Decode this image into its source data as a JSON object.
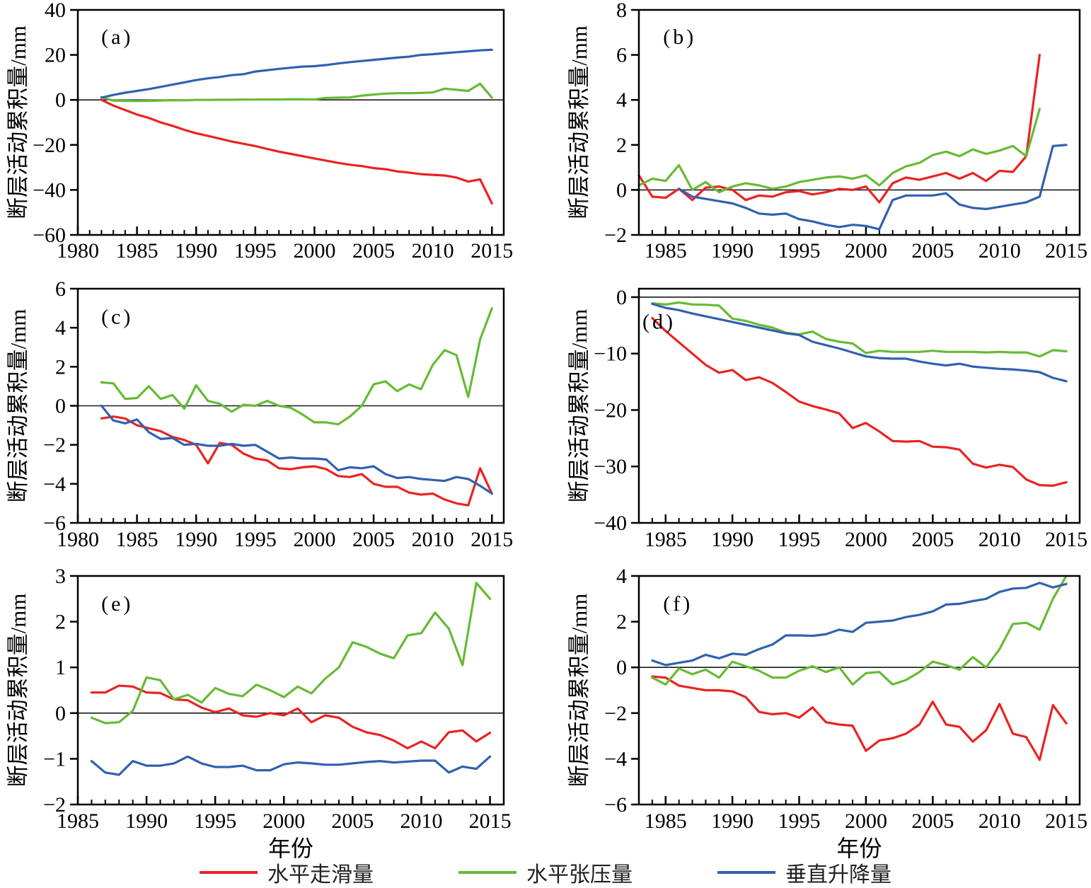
{
  "colors": {
    "red": "#e92322",
    "green": "#67ba35",
    "blue": "#3161ae",
    "axis": "#000000",
    "zero_line": "#1a1a1a"
  },
  "legend": {
    "items": [
      {
        "label": "水平走滑量",
        "color_key": "red"
      },
      {
        "label": "水平张压量",
        "color_key": "green"
      },
      {
        "label": "垂直升降量",
        "color_key": "blue"
      }
    ]
  },
  "chart_data": [
    {
      "type": "line",
      "panel": "(a)",
      "ylabel": "断层活动累积量/mm",
      "xlabel": "",
      "xlim": [
        1980,
        2016
      ],
      "ylim": [
        -60,
        40
      ],
      "yticks": [
        40,
        20,
        0,
        -20,
        -40,
        -60
      ],
      "xticks": [
        1980,
        1985,
        1990,
        1995,
        2000,
        2005,
        2010,
        2015
      ],
      "minor_tick_step": 1,
      "series": [
        {
          "name": "水平走滑量",
          "color_key": "red",
          "start_year": 1982,
          "values": [
            0,
            -2.5,
            -4.5,
            -6.5,
            -8.0,
            -10.0,
            -11.5,
            -13.3,
            -14.8,
            -16.0,
            -17.2,
            -18.5,
            -19.5,
            -20.5,
            -21.8,
            -23.0,
            -24.0,
            -25.0,
            -26.0,
            -27.0,
            -28.0,
            -28.8,
            -29.4,
            -30.3,
            -30.8,
            -31.8,
            -32.3,
            -33.0,
            -33.3,
            -33.6,
            -34.5,
            -36.3,
            -35.3,
            -46.0
          ]
        },
        {
          "name": "水平张压量",
          "color_key": "green",
          "start_year": 1982,
          "values": [
            1.2,
            -0.3,
            -0.4,
            -0.5,
            -0.4,
            -0.3,
            -0.1,
            -0.2,
            0.0,
            0.0,
            0.05,
            0.05,
            0.15,
            0.15,
            0.2,
            0.2,
            0.25,
            0.25,
            0.2,
            0.9,
            1.0,
            1.1,
            1.9,
            2.4,
            2.8,
            3.0,
            3.0,
            3.1,
            3.3,
            5.0,
            4.5,
            4.0,
            7.2,
            1.0
          ]
        },
        {
          "name": "垂直升降量",
          "color_key": "blue",
          "start_year": 1982,
          "values": [
            1.0,
            2.2,
            3.2,
            4.0,
            4.8,
            5.8,
            6.8,
            7.8,
            8.8,
            9.6,
            10.2,
            11.0,
            11.4,
            12.6,
            13.2,
            13.8,
            14.3,
            14.8,
            15.0,
            15.5,
            16.2,
            16.8,
            17.3,
            17.8,
            18.3,
            18.8,
            19.2,
            20.0,
            20.3,
            20.8,
            21.2,
            21.6,
            22.0,
            22.3
          ]
        }
      ]
    },
    {
      "type": "line",
      "panel": "(b)",
      "ylabel": "断层活动累积量/mm",
      "xlabel": "",
      "xlim": [
        1983,
        2016
      ],
      "ylim": [
        -2,
        8
      ],
      "yticks": [
        8,
        6,
        4,
        2,
        0,
        -2
      ],
      "xticks": [
        1985,
        1990,
        1995,
        2000,
        2005,
        2010,
        2015
      ],
      "minor_tick_step": 1,
      "series": [
        {
          "name": "水平走滑量",
          "color_key": "red",
          "start_year": 1983,
          "values": [
            0.65,
            -0.3,
            -0.35,
            0.05,
            -0.45,
            0.1,
            0.15,
            0.0,
            -0.45,
            -0.25,
            -0.3,
            -0.1,
            -0.05,
            -0.2,
            -0.1,
            0.05,
            0.0,
            0.15,
            -0.55,
            0.3,
            0.55,
            0.45,
            0.6,
            0.75,
            0.5,
            0.75,
            0.4,
            0.85,
            0.8,
            1.5,
            6.0
          ]
        },
        {
          "name": "水平张压量",
          "color_key": "green",
          "start_year": 1983,
          "values": [
            0.2,
            0.5,
            0.4,
            1.1,
            0.0,
            0.35,
            -0.1,
            0.15,
            0.3,
            0.2,
            0.05,
            0.15,
            0.35,
            0.45,
            0.55,
            0.6,
            0.5,
            0.65,
            0.2,
            0.75,
            1.05,
            1.2,
            1.55,
            1.7,
            1.5,
            1.8,
            1.6,
            1.75,
            1.95,
            1.5,
            3.6
          ]
        },
        {
          "name": "垂直升降量",
          "color_key": "blue",
          "start_year": 1986,
          "values": [
            0.05,
            -0.3,
            -0.4,
            -0.5,
            -0.6,
            -0.8,
            -1.05,
            -1.1,
            -1.05,
            -1.3,
            -1.4,
            -1.55,
            -1.65,
            -1.55,
            -1.6,
            -1.75,
            -0.45,
            -0.25,
            -0.25,
            -0.25,
            -0.15,
            -0.65,
            -0.8,
            -0.85,
            -0.75,
            -0.65,
            -0.55,
            -0.3,
            1.95,
            2.0
          ]
        }
      ]
    },
    {
      "type": "line",
      "panel": "(c)",
      "ylabel": "断层活动累积量/mm",
      "xlabel": "",
      "xlim": [
        1980,
        2016
      ],
      "ylim": [
        -6,
        6
      ],
      "yticks": [
        6,
        4,
        2,
        0,
        -2,
        -4,
        -6
      ],
      "xticks": [
        1980,
        1985,
        1990,
        1995,
        2000,
        2005,
        2010,
        2015
      ],
      "minor_tick_step": 1,
      "series": [
        {
          "name": "水平走滑量",
          "color_key": "red",
          "start_year": 1982,
          "values": [
            -0.65,
            -0.55,
            -0.65,
            -1.0,
            -1.15,
            -1.3,
            -1.6,
            -1.75,
            -2.0,
            -2.95,
            -1.9,
            -2.0,
            -2.45,
            -2.7,
            -2.8,
            -3.2,
            -3.25,
            -3.15,
            -3.1,
            -3.25,
            -3.6,
            -3.65,
            -3.5,
            -4.0,
            -4.15,
            -4.15,
            -4.45,
            -4.55,
            -4.5,
            -4.8,
            -5.0,
            -5.1,
            -3.2,
            -4.5
          ]
        },
        {
          "name": "水平张压量",
          "color_key": "green",
          "start_year": 1982,
          "values": [
            1.2,
            1.15,
            0.35,
            0.4,
            1.0,
            0.35,
            0.55,
            -0.15,
            1.05,
            0.25,
            0.1,
            -0.3,
            0.05,
            0.0,
            0.25,
            0.0,
            -0.1,
            -0.45,
            -0.85,
            -0.85,
            -0.95,
            -0.55,
            0.0,
            1.1,
            1.25,
            0.75,
            1.1,
            0.85,
            2.1,
            2.85,
            2.6,
            0.45,
            3.4,
            5.0
          ]
        },
        {
          "name": "垂直升降量",
          "color_key": "blue",
          "start_year": 1982,
          "values": [
            0.0,
            -0.75,
            -0.9,
            -0.7,
            -1.35,
            -1.7,
            -1.65,
            -2.0,
            -1.95,
            -2.05,
            -2.05,
            -1.95,
            -2.05,
            -2.0,
            -2.35,
            -2.7,
            -2.65,
            -2.7,
            -2.7,
            -2.75,
            -3.3,
            -3.15,
            -3.2,
            -3.1,
            -3.5,
            -3.7,
            -3.65,
            -3.75,
            -3.8,
            -3.85,
            -3.65,
            -3.75,
            -4.1,
            -4.5
          ]
        }
      ]
    },
    {
      "type": "line",
      "panel": "(d)",
      "ylabel": "断层活动累积量/mm",
      "xlabel": "",
      "xlim": [
        1983,
        2016
      ],
      "ylim": [
        -40,
        1.5
      ],
      "yticks": [
        0,
        -10,
        -20,
        -30,
        -40
      ],
      "xticks": [
        1985,
        1990,
        1995,
        2000,
        2005,
        2010,
        2015
      ],
      "minor_tick_step": 1,
      "series": [
        {
          "name": "水平走滑量",
          "color_key": "red",
          "start_year": 1984,
          "values": [
            -3.7,
            -6.0,
            -8.0,
            -10.0,
            -12.0,
            -13.4,
            -12.9,
            -14.7,
            -14.2,
            -15.2,
            -16.8,
            -18.5,
            -19.3,
            -19.9,
            -20.6,
            -23.2,
            -22.3,
            -23.8,
            -25.5,
            -25.6,
            -25.5,
            -26.5,
            -26.6,
            -27.0,
            -29.5,
            -30.2,
            -29.7,
            -30.1,
            -32.3,
            -33.3,
            -33.4,
            -32.8
          ]
        },
        {
          "name": "水平张压量",
          "color_key": "green",
          "start_year": 1984,
          "values": [
            -1.1,
            -1.3,
            -0.95,
            -1.3,
            -1.35,
            -1.5,
            -3.8,
            -4.2,
            -4.9,
            -5.4,
            -6.3,
            -6.6,
            -6.1,
            -7.4,
            -7.9,
            -8.2,
            -9.9,
            -9.5,
            -9.7,
            -9.7,
            -9.7,
            -9.5,
            -9.7,
            -9.7,
            -9.7,
            -9.8,
            -9.7,
            -9.8,
            -9.8,
            -10.5,
            -9.4,
            -9.6
          ]
        },
        {
          "name": "垂直升降量",
          "color_key": "blue",
          "start_year": 1984,
          "values": [
            -1.2,
            -1.9,
            -2.3,
            -2.9,
            -3.4,
            -3.9,
            -4.4,
            -4.9,
            -5.4,
            -5.9,
            -6.4,
            -6.7,
            -7.9,
            -8.5,
            -9.1,
            -9.8,
            -10.5,
            -10.8,
            -10.9,
            -10.9,
            -11.4,
            -11.8,
            -12.1,
            -11.8,
            -12.3,
            -12.5,
            -12.7,
            -12.8,
            -13.0,
            -13.3,
            -14.3,
            -14.9
          ]
        }
      ]
    },
    {
      "type": "line",
      "panel": "(e)",
      "ylabel": "断层活动累积量/mm",
      "xlabel": "年份",
      "xlim": [
        1985,
        2016
      ],
      "ylim": [
        -2,
        3
      ],
      "yticks": [
        3,
        2,
        1,
        0,
        -1,
        -2
      ],
      "xticks": [
        1985,
        1990,
        1995,
        2000,
        2005,
        2010,
        2015
      ],
      "minor_tick_step": 1,
      "series": [
        {
          "name": "水平走滑量",
          "color_key": "red",
          "start_year": 1986,
          "values": [
            0.45,
            0.45,
            0.6,
            0.58,
            0.45,
            0.44,
            0.3,
            0.28,
            0.12,
            0.02,
            0.1,
            -0.05,
            -0.08,
            0.0,
            -0.05,
            0.1,
            -0.2,
            -0.05,
            -0.1,
            -0.3,
            -0.42,
            -0.48,
            -0.6,
            -0.77,
            -0.62,
            -0.77,
            -0.42,
            -0.38,
            -0.62,
            -0.43
          ]
        },
        {
          "name": "水平张压量",
          "color_key": "green",
          "start_year": 1986,
          "values": [
            -0.1,
            -0.22,
            -0.2,
            0.05,
            0.78,
            0.72,
            0.3,
            0.4,
            0.23,
            0.55,
            0.42,
            0.37,
            0.62,
            0.5,
            0.35,
            0.58,
            0.43,
            0.75,
            1.0,
            1.55,
            1.45,
            1.3,
            1.2,
            1.7,
            1.75,
            2.2,
            1.85,
            1.05,
            2.85,
            2.5
          ]
        },
        {
          "name": "垂直升降量",
          "color_key": "blue",
          "start_year": 1986,
          "values": [
            -1.05,
            -1.3,
            -1.35,
            -1.05,
            -1.15,
            -1.15,
            -1.1,
            -0.95,
            -1.1,
            -1.18,
            -1.18,
            -1.15,
            -1.25,
            -1.25,
            -1.12,
            -1.08,
            -1.1,
            -1.13,
            -1.13,
            -1.1,
            -1.07,
            -1.05,
            -1.08,
            -1.06,
            -1.04,
            -1.04,
            -1.3,
            -1.17,
            -1.22,
            -0.95
          ]
        }
      ]
    },
    {
      "type": "line",
      "panel": "(f)",
      "ylabel": "断层活动累积量/mm",
      "xlabel": "年份",
      "xlim": [
        1983,
        2016
      ],
      "ylim": [
        -6,
        4
      ],
      "yticks": [
        4,
        2,
        0,
        -2,
        -4,
        -6
      ],
      "xticks": [
        1985,
        1990,
        1995,
        2000,
        2005,
        2010,
        2015
      ],
      "minor_tick_step": 1,
      "series": [
        {
          "name": "水平走滑量",
          "color_key": "red",
          "start_year": 1984,
          "values": [
            -0.4,
            -0.45,
            -0.8,
            -0.9,
            -1.0,
            -1.0,
            -1.05,
            -1.3,
            -1.95,
            -2.05,
            -2.0,
            -2.2,
            -1.75,
            -2.4,
            -2.5,
            -2.55,
            -3.65,
            -3.2,
            -3.1,
            -2.9,
            -2.5,
            -1.5,
            -2.5,
            -2.6,
            -3.25,
            -2.75,
            -1.6,
            -2.9,
            -3.05,
            -4.05,
            -1.65,
            -2.45
          ]
        },
        {
          "name": "水平张压量",
          "color_key": "green",
          "start_year": 1984,
          "values": [
            -0.45,
            -0.75,
            -0.05,
            -0.3,
            -0.1,
            -0.45,
            0.25,
            0.05,
            -0.15,
            -0.45,
            -0.45,
            -0.15,
            0.05,
            -0.2,
            0.0,
            -0.75,
            -0.25,
            -0.2,
            -0.75,
            -0.55,
            -0.2,
            0.25,
            0.1,
            -0.1,
            0.45,
            0.0,
            0.8,
            1.9,
            1.95,
            1.65,
            3.0,
            4.0
          ]
        },
        {
          "name": "垂直升降量",
          "color_key": "blue",
          "start_year": 1984,
          "values": [
            0.3,
            0.1,
            0.2,
            0.3,
            0.55,
            0.4,
            0.6,
            0.55,
            0.8,
            1.0,
            1.4,
            1.4,
            1.38,
            1.45,
            1.65,
            1.55,
            1.95,
            2.0,
            2.05,
            2.2,
            2.3,
            2.45,
            2.75,
            2.78,
            2.9,
            3.0,
            3.3,
            3.45,
            3.48,
            3.7,
            3.5,
            3.65
          ]
        }
      ]
    }
  ]
}
